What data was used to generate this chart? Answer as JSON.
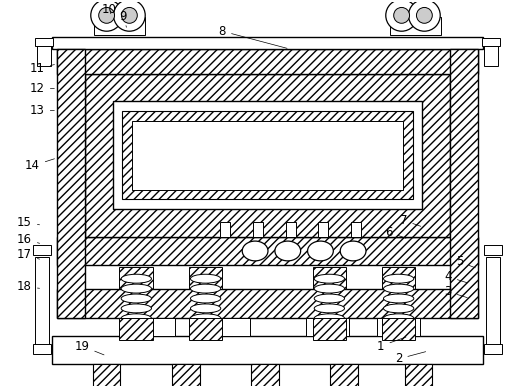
{
  "bg_color": "#ffffff",
  "line_color": "#000000",
  "fig_width": 5.31,
  "fig_height": 3.87,
  "dpi": 100
}
